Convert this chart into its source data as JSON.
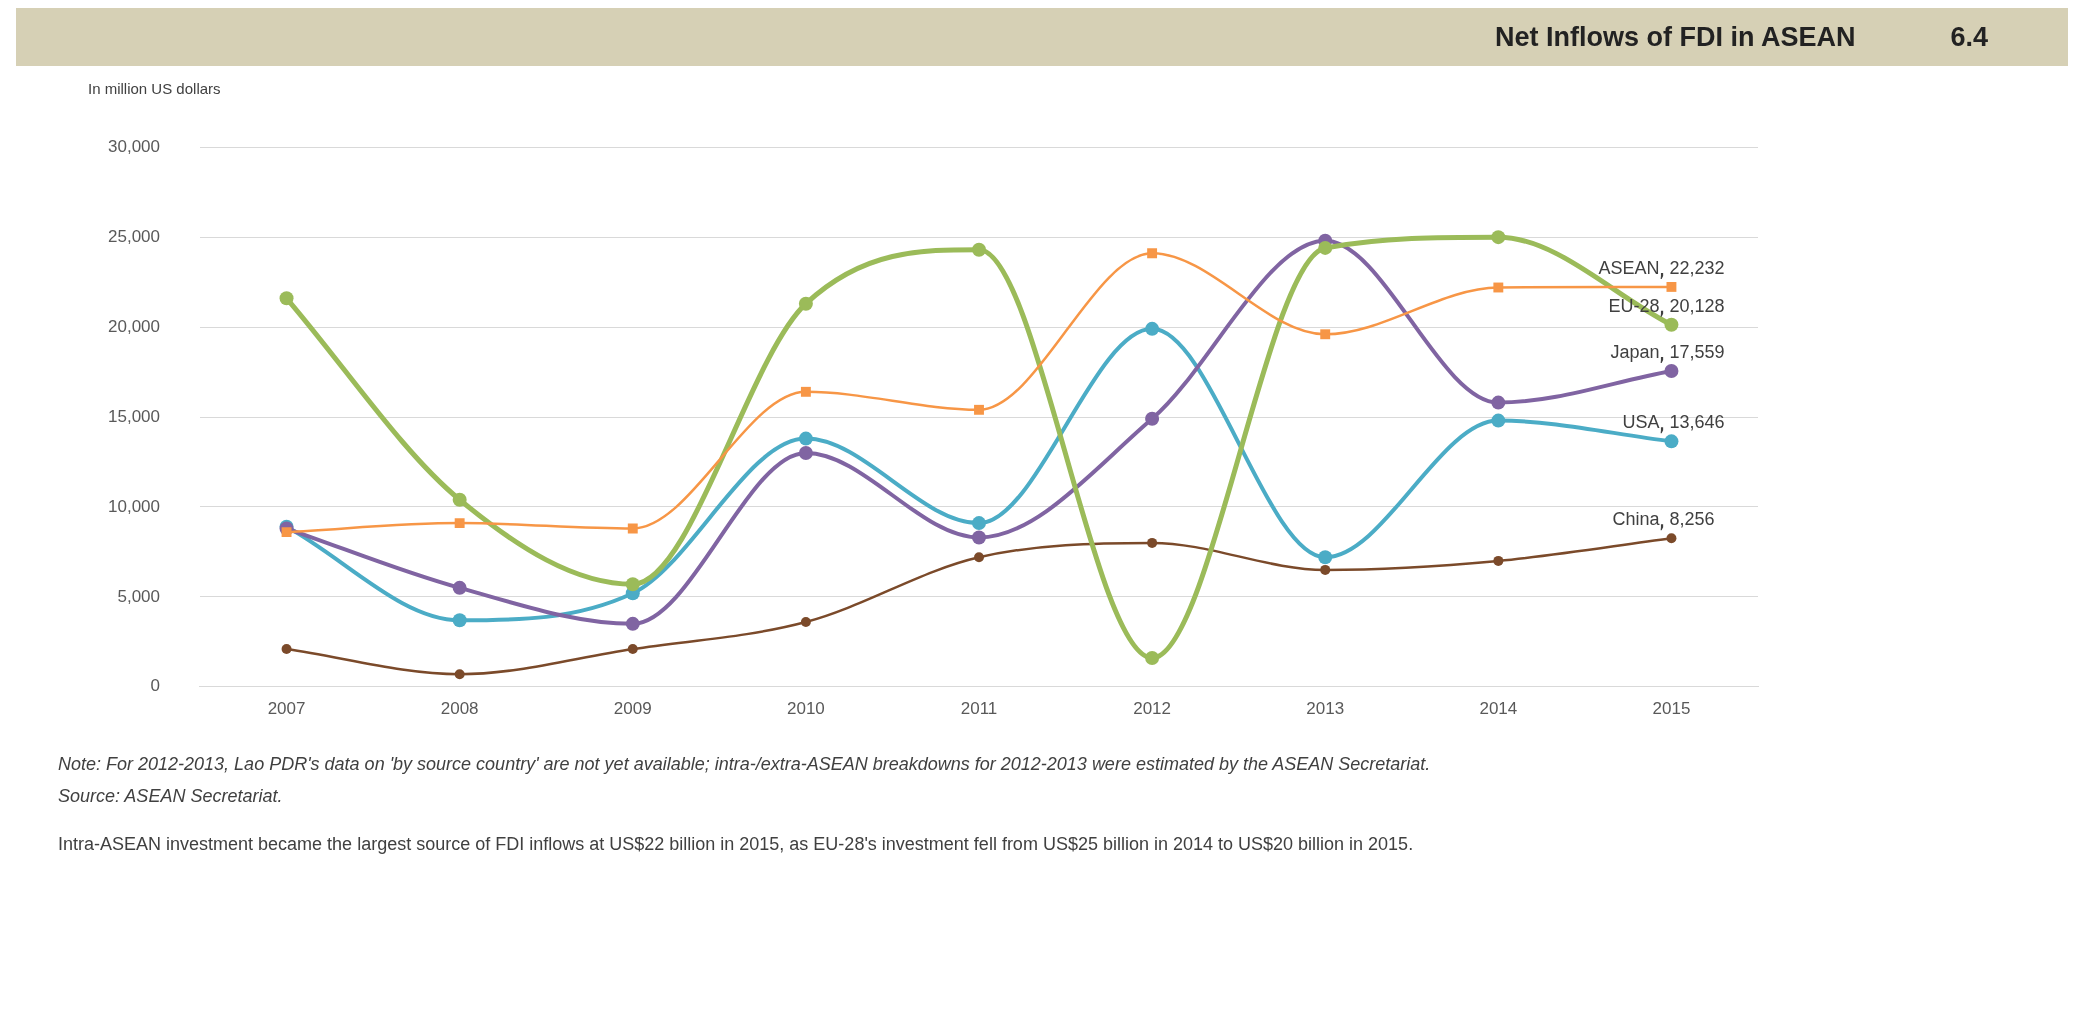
{
  "chart_data": {
    "type": "line",
    "title": "Net Inflows of FDI in ASEAN",
    "ylabel": "In million US dollars",
    "annotations": [
      "6.4",
      "Note: For 2012-2013, Lao PDR's data on 'by source country' are not yet available;  intra-/extra-ASEAN breakdowns for 2012-2013 were estimated by the ASEAN Secretariat.",
      "Source:  ASEAN Secretariat.",
      "Intra-ASEAN investment became the largest source of FDI inflows at US$22 billion in 2015, as EU-28's investment fell from US$25 billion in 2014 to US$20 billion in 2015."
    ],
    "categories": [
      "2007",
      "2008",
      "2009",
      "2010",
      "2011",
      "2012",
      "2013",
      "2014",
      "2015"
    ],
    "series": [
      {
        "name": "ASEAN",
        "color": "#f79646",
        "marker": "square",
        "values": [
          8600,
          9100,
          8800,
          16400,
          15400,
          24100,
          19600,
          22200,
          22232
        ],
        "value_labels": [
          null,
          null,
          null,
          null,
          null,
          null,
          null,
          null,
          "22,232"
        ]
      },
      {
        "name": "EU-28",
        "color": "#9bbb59",
        "marker": "circle",
        "values": [
          21600,
          10400,
          5700,
          21300,
          24300,
          1600,
          24400,
          25000,
          20128
        ],
        "value_labels": [
          null,
          null,
          null,
          null,
          null,
          null,
          null,
          null,
          "20,128"
        ]
      },
      {
        "name": "Japan",
        "color": "#8064a2",
        "marker": "circle",
        "values": [
          8800,
          5500,
          3500,
          13000,
          8300,
          14900,
          24800,
          15800,
          17559
        ],
        "value_labels": [
          null,
          null,
          null,
          null,
          null,
          null,
          null,
          null,
          "17,559"
        ]
      },
      {
        "name": "USA",
        "color": "#4bacc6",
        "marker": "circle",
        "values": [
          8900,
          3700,
          5200,
          13800,
          9100,
          19900,
          7200,
          14800,
          13646
        ],
        "value_labels": [
          null,
          null,
          null,
          null,
          null,
          null,
          null,
          null,
          "13,646"
        ]
      },
      {
        "name": "China",
        "color": "#7b4a2a",
        "marker": "circle",
        "values": [
          2100,
          700,
          2100,
          3600,
          7200,
          8000,
          6500,
          7000,
          8256
        ],
        "value_labels": [
          null,
          null,
          null,
          null,
          null,
          null,
          null,
          null,
          "8,256"
        ]
      }
    ],
    "ylim": [
      0,
      30000
    ],
    "yticks": [
      {
        "value": 0,
        "label": "0"
      },
      {
        "value": 5000,
        "label": "5,000"
      },
      {
        "value": 10000,
        "label": "10,000"
      },
      {
        "value": 15000,
        "label": "15,000"
      },
      {
        "value": 20000,
        "label": "20,000"
      },
      {
        "value": 25000,
        "label": "25,000"
      },
      {
        "value": 30000,
        "label": "30,000"
      }
    ],
    "grid": "y",
    "legend": false
  }
}
